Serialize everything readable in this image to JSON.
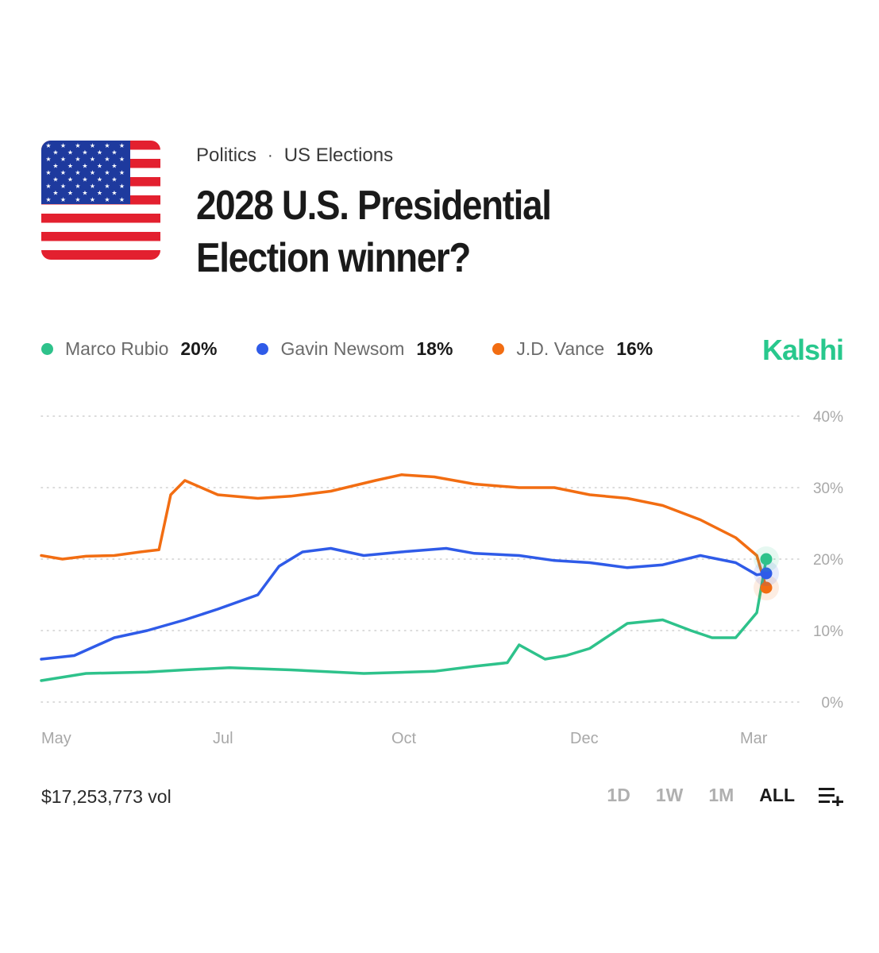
{
  "breadcrumb": {
    "category": "Politics",
    "separator": "·",
    "subcategory": "US Elections"
  },
  "title": "2028 U.S. Presidential Election winner?",
  "brand": "Kalshi",
  "brand_color": "#28c88d",
  "flag_icon": "us-flag-icon",
  "legend": [
    {
      "name": "Marco Rubio",
      "value": "20%",
      "color": "#2ec28b"
    },
    {
      "name": "Gavin Newsom",
      "value": "18%",
      "color": "#2f5be8"
    },
    {
      "name": "J.D. Vance",
      "value": "16%",
      "color": "#f26d12"
    }
  ],
  "footer": {
    "volume": "$17,253,773 vol",
    "ranges": [
      "1D",
      "1W",
      "1M",
      "ALL"
    ],
    "active_range": "ALL",
    "list_icon": "add-to-list-icon"
  },
  "chart_data": {
    "type": "line",
    "x_ticks": [
      "May",
      "Jul",
      "Oct",
      "Dec",
      "Mar"
    ],
    "y_ticks": [
      "0%",
      "10%",
      "20%",
      "30%",
      "40%"
    ],
    "ylim": [
      0,
      40
    ],
    "xlim": [
      "2025-05-01",
      "2026-03-05"
    ],
    "grid": true,
    "series": [
      {
        "name": "J.D. Vance",
        "color": "#f26d12",
        "x": [
          "2025-05-01",
          "2025-05-10",
          "2025-05-20",
          "2025-06-01",
          "2025-06-12",
          "2025-06-20",
          "2025-06-25",
          "2025-07-01",
          "2025-07-15",
          "2025-08-01",
          "2025-08-15",
          "2025-09-01",
          "2025-09-20",
          "2025-10-01",
          "2025-10-15",
          "2025-11-01",
          "2025-11-20",
          "2025-12-05",
          "2025-12-20",
          "2026-01-05",
          "2026-01-20",
          "2026-02-05",
          "2026-02-20",
          "2026-03-01",
          "2026-03-05"
        ],
        "y": [
          20.5,
          20,
          20.4,
          20.5,
          21,
          21.3,
          29,
          31,
          29,
          28.5,
          28.8,
          29.5,
          31,
          31.8,
          31.5,
          30.5,
          30,
          30,
          29,
          28.5,
          27.5,
          25.5,
          23,
          20.5,
          16
        ]
      },
      {
        "name": "Gavin Newsom",
        "color": "#2f5be8",
        "x": [
          "2025-05-01",
          "2025-05-15",
          "2025-06-01",
          "2025-06-15",
          "2025-07-01",
          "2025-07-15",
          "2025-08-01",
          "2025-08-10",
          "2025-08-20",
          "2025-09-01",
          "2025-09-15",
          "2025-10-01",
          "2025-10-20",
          "2025-11-01",
          "2025-11-20",
          "2025-12-05",
          "2025-12-20",
          "2026-01-05",
          "2026-01-20",
          "2026-02-05",
          "2026-02-20",
          "2026-03-01",
          "2026-03-05"
        ],
        "y": [
          6,
          6.5,
          9,
          10,
          11.5,
          13,
          15,
          19,
          21,
          21.5,
          20.5,
          21,
          21.5,
          20.8,
          20.5,
          19.8,
          19.5,
          18.8,
          19.2,
          20.5,
          19.5,
          17.8,
          18
        ]
      },
      {
        "name": "Marco Rubio",
        "color": "#2ec28b",
        "x": [
          "2025-05-01",
          "2025-05-20",
          "2025-06-15",
          "2025-07-01",
          "2025-07-20",
          "2025-08-15",
          "2025-09-15",
          "2025-10-15",
          "2025-11-01",
          "2025-11-15",
          "2025-11-20",
          "2025-12-01",
          "2025-12-10",
          "2025-12-20",
          "2026-01-05",
          "2026-01-20",
          "2026-02-01",
          "2026-02-10",
          "2026-02-20",
          "2026-03-01",
          "2026-03-05"
        ],
        "y": [
          3,
          4,
          4.2,
          4.5,
          4.8,
          4.5,
          4,
          4.3,
          5,
          5.5,
          8,
          6,
          6.5,
          7.5,
          11,
          11.5,
          10,
          9,
          9,
          12.5,
          20
        ]
      }
    ]
  }
}
